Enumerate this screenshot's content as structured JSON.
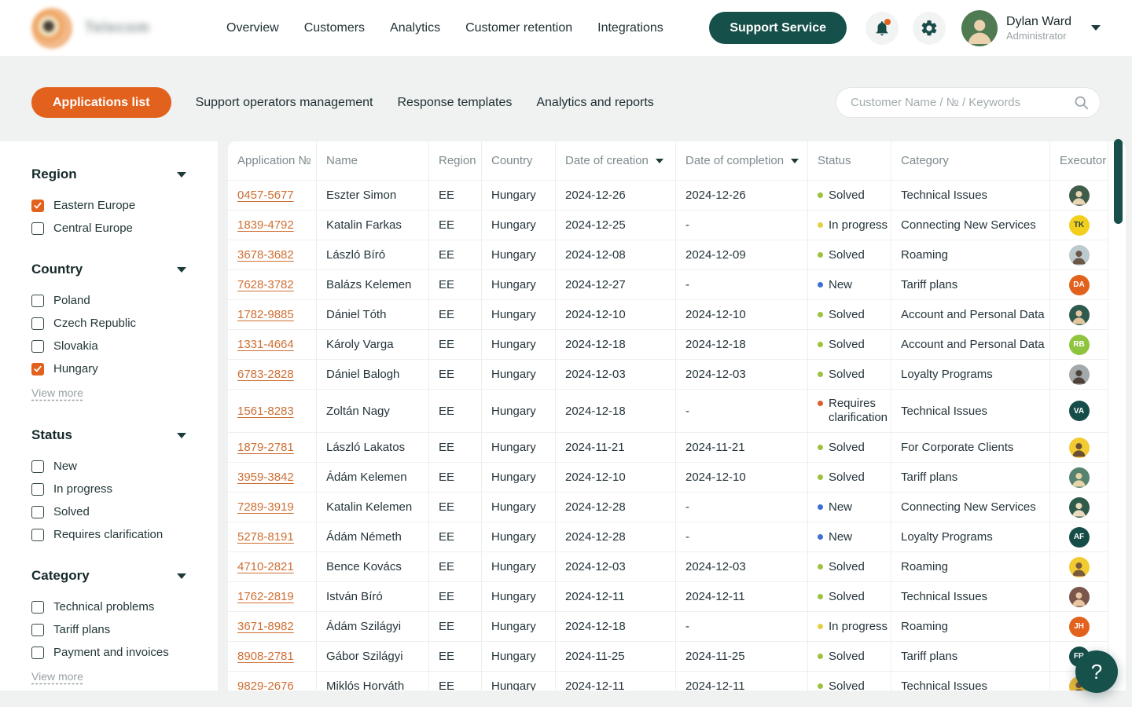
{
  "header": {
    "logo_text": "Telecom",
    "nav": [
      {
        "label": "Overview"
      },
      {
        "label": "Customers"
      },
      {
        "label": "Analytics"
      },
      {
        "label": "Customer retention"
      },
      {
        "label": "Integrations"
      }
    ],
    "support_button": "Support Service",
    "user": {
      "name": "Dylan Ward",
      "role": "Administrator",
      "avatar": {
        "kind": "photo",
        "bg": "#4F7A52",
        "fg": "#EBD2AE"
      }
    }
  },
  "toolbar": {
    "active_tab": "Applications list",
    "tabs": [
      {
        "label": "Support operators management"
      },
      {
        "label": "Response templates"
      },
      {
        "label": "Analytics and reports"
      }
    ],
    "search_placeholder": "Customer Name / № / Keywords"
  },
  "filters": {
    "view_more_label": "View more",
    "sections": [
      {
        "title": "Region",
        "view_more": false,
        "options": [
          {
            "label": "Eastern Europe",
            "checked": true
          },
          {
            "label": "Central Europe",
            "checked": false
          }
        ]
      },
      {
        "title": "Country",
        "view_more": true,
        "options": [
          {
            "label": "Poland",
            "checked": false
          },
          {
            "label": "Czech Republic",
            "checked": false
          },
          {
            "label": "Slovakia",
            "checked": false
          },
          {
            "label": "Hungary",
            "checked": true
          }
        ]
      },
      {
        "title": "Status",
        "view_more": false,
        "options": [
          {
            "label": "New",
            "checked": false
          },
          {
            "label": "In progress",
            "checked": false
          },
          {
            "label": "Solved",
            "checked": false
          },
          {
            "label": "Requires clarification",
            "checked": false
          }
        ]
      },
      {
        "title": "Category",
        "view_more": true,
        "options": [
          {
            "label": "Technical problems",
            "checked": false
          },
          {
            "label": "Tariff plans",
            "checked": false
          },
          {
            "label": "Payment and invoices",
            "checked": false
          }
        ]
      }
    ]
  },
  "table": {
    "columns": [
      {
        "label": "Application №"
      },
      {
        "label": "Name"
      },
      {
        "label": "Region"
      },
      {
        "label": "Country"
      },
      {
        "label": "Date of creation",
        "sortable": true
      },
      {
        "label": "Date of completion",
        "sortable": true
      },
      {
        "label": "Status"
      },
      {
        "label": "Category"
      },
      {
        "label": "Executor"
      }
    ],
    "status_colors": {
      "Solved": "#9DC23B",
      "In progress": "#E5D044",
      "New": "#3D6FD7",
      "Requires clarification": "#DD5F2E"
    },
    "rows": [
      {
        "id": "0457-5677",
        "name": "Eszter Simon",
        "region": "EE",
        "country": "Hungary",
        "created": "2024-12-26",
        "completed": "2024-12-26",
        "status": "Solved",
        "category": "Technical Issues",
        "executor": {
          "kind": "photo",
          "bg": "#3F5D49",
          "fg": "#E9D5B4"
        }
      },
      {
        "id": "1839-4792",
        "name": "Katalin Farkas",
        "region": "EE",
        "country": "Hungary",
        "created": "2024-12-25",
        "completed": "-",
        "status": "In progress",
        "category": "Connecting New Services",
        "executor": {
          "kind": "initials",
          "label": "TK",
          "bg": "#F3CF1D",
          "fg": "#234A44"
        }
      },
      {
        "id": "3678-3682",
        "name": "László Bíró",
        "region": "EE",
        "country": "Hungary",
        "created": "2024-12-08",
        "completed": "2024-12-09",
        "status": "Solved",
        "category": "Roaming",
        "executor": {
          "kind": "photo",
          "bg": "#BCC9CD",
          "fg": "#6B5747"
        }
      },
      {
        "id": "7628-3782",
        "name": "Balázs Kelemen",
        "region": "EE",
        "country": "Hungary",
        "created": "2024-12-27",
        "completed": "-",
        "status": "New",
        "category": "Tariff plans",
        "executor": {
          "kind": "initials",
          "label": "DA",
          "bg": "#E2611C",
          "fg": "#FFFFFF"
        }
      },
      {
        "id": "1782-9885",
        "name": "Dániel Tóth",
        "region": "EE",
        "country": "Hungary",
        "created": "2024-12-10",
        "completed": "2024-12-10",
        "status": "Solved",
        "category": "Account and Personal Data",
        "executor": {
          "kind": "photo",
          "bg": "#2E5A50",
          "fg": "#E3C49E"
        }
      },
      {
        "id": "1331-4664",
        "name": "Károly Varga",
        "region": "EE",
        "country": "Hungary",
        "created": "2024-12-18",
        "completed": "2024-12-18",
        "status": "Solved",
        "category": "Account and Personal Data",
        "executor": {
          "kind": "initials",
          "label": "RB",
          "bg": "#8FC43F",
          "fg": "#FFFFFF"
        }
      },
      {
        "id": "6783-2828",
        "name": "Dániel Balogh",
        "region": "EE",
        "country": "Hungary",
        "created": "2024-12-03",
        "completed": "2024-12-03",
        "status": "Solved",
        "category": "Loyalty Programs",
        "executor": {
          "kind": "photo",
          "bg": "#A3A8AA",
          "fg": "#4E4238"
        }
      },
      {
        "id": "1561-8283",
        "name": "Zoltán Nagy",
        "region": "EE",
        "country": "Hungary",
        "created": "2024-12-18",
        "completed": "-",
        "status": "Requires clarification",
        "category": "Technical Issues",
        "executor": {
          "kind": "initials",
          "label": "VA",
          "bg": "#174D48",
          "fg": "#FFFFFF"
        }
      },
      {
        "id": "1879-2781",
        "name": "László Lakatos",
        "region": "EE",
        "country": "Hungary",
        "created": "2024-11-21",
        "completed": "2024-11-21",
        "status": "Solved",
        "category": "For Corporate Clients",
        "executor": {
          "kind": "photo",
          "bg": "#F2CB33",
          "fg": "#6B4F35"
        }
      },
      {
        "id": "3959-3842",
        "name": "Ádám Kelemen",
        "region": "EE",
        "country": "Hungary",
        "created": "2024-12-10",
        "completed": "2024-12-10",
        "status": "Solved",
        "category": "Tariff plans",
        "executor": {
          "kind": "photo",
          "bg": "#55836F",
          "fg": "#E8D3A8"
        }
      },
      {
        "id": "7289-3919",
        "name": "Katalin Kelemen",
        "region": "EE",
        "country": "Hungary",
        "created": "2024-12-28",
        "completed": "-",
        "status": "New",
        "category": "Connecting New Services",
        "executor": {
          "kind": "photo",
          "bg": "#2F5B4B",
          "fg": "#EBD9C0"
        }
      },
      {
        "id": "5278-8191",
        "name": "Ádám Németh",
        "region": "EE",
        "country": "Hungary",
        "created": "2024-12-28",
        "completed": "-",
        "status": "New",
        "category": "Loyalty Programs",
        "executor": {
          "kind": "initials",
          "label": "AF",
          "bg": "#174D48",
          "fg": "#FFFFFF"
        }
      },
      {
        "id": "4710-2821",
        "name": "Bence Kovács",
        "region": "EE",
        "country": "Hungary",
        "created": "2024-12-03",
        "completed": "2024-12-03",
        "status": "Solved",
        "category": "Roaming",
        "executor": {
          "kind": "photo",
          "bg": "#F2CB33",
          "fg": "#7A5A3A"
        }
      },
      {
        "id": "1762-2819",
        "name": "István Bíró",
        "region": "EE",
        "country": "Hungary",
        "created": "2024-12-11",
        "completed": "2024-12-11",
        "status": "Solved",
        "category": "Technical Issues",
        "executor": {
          "kind": "photo",
          "bg": "#7A564B",
          "fg": "#E9C5A4"
        }
      },
      {
        "id": "3671-8982",
        "name": "Ádám Szilágyi",
        "region": "EE",
        "country": "Hungary",
        "created": "2024-12-18",
        "completed": "-",
        "status": "In progress",
        "category": "Roaming",
        "executor": {
          "kind": "initials",
          "label": "JH",
          "bg": "#E2611C",
          "fg": "#FFFFFF"
        }
      },
      {
        "id": "8908-2781",
        "name": "Gábor Szilágyi",
        "region": "EE",
        "country": "Hungary",
        "created": "2024-11-25",
        "completed": "2024-11-25",
        "status": "Solved",
        "category": "Tariff plans",
        "executor": {
          "kind": "initials",
          "label": "FR",
          "bg": "#174D48",
          "fg": "#FFFFFF"
        }
      },
      {
        "id": "9829-2676",
        "name": "Miklós Horváth",
        "region": "EE",
        "country": "Hungary",
        "created": "2024-12-11",
        "completed": "2024-12-11",
        "status": "Solved",
        "category": "Technical Issues",
        "executor": {
          "kind": "photo",
          "bg": "#E9B93C",
          "fg": "#6B4F35"
        }
      }
    ]
  },
  "help": {
    "label": "?"
  }
}
